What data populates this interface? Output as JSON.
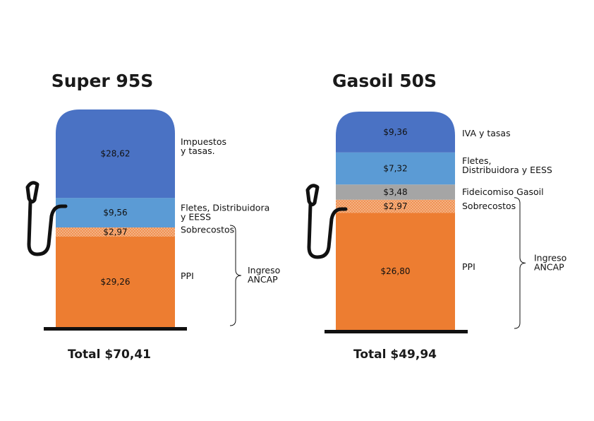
{
  "colors": {
    "iva_tasas": "#4a72c4",
    "fletes": "#5b9bd5",
    "fideicomiso": "#a5a5a5",
    "sobrecostos": "#f4b183",
    "sobrecostos_dots": "#ed7d31",
    "ppi": "#ed7d31",
    "pump_line": "#111111"
  },
  "chart_data": [
    {
      "type": "bar",
      "stacked": true,
      "title": "Super 95S",
      "total_label": "Total $70,41",
      "group_label": [
        "Ingreso",
        "ANCAP"
      ],
      "segments": [
        {
          "key": "ppi",
          "value": 29.26,
          "value_label": "$29,26",
          "label": [
            "PPI"
          ]
        },
        {
          "key": "sobrecostos",
          "value": 2.97,
          "value_label": "$2,97",
          "label": [
            "Sobrecostos"
          ]
        },
        {
          "key": "fletes",
          "value": 9.56,
          "value_label": "$9,56",
          "label": [
            "Fletes, Distribuidora",
            "y EESS"
          ]
        },
        {
          "key": "iva_tasas",
          "value": 28.62,
          "value_label": "$28,62",
          "label": [
            "Impuestos",
            "y tasas."
          ]
        }
      ]
    },
    {
      "type": "bar",
      "stacked": true,
      "title": "Gasoil 50S",
      "total_label": "Total $49,94",
      "group_label": [
        "Ingreso",
        "ANCAP"
      ],
      "segments": [
        {
          "key": "ppi",
          "value": 26.8,
          "value_label": "$26,80",
          "label": [
            "PPI"
          ]
        },
        {
          "key": "sobrecostos",
          "value": 2.97,
          "value_label": "$2,97",
          "label": [
            "Sobrecostos"
          ]
        },
        {
          "key": "fideicomiso",
          "value": 3.48,
          "value_label": "$3,48",
          "label": [
            "Fideicomiso Gasoil"
          ]
        },
        {
          "key": "fletes",
          "value": 7.32,
          "value_label": "$7,32",
          "label": [
            "Fletes,",
            "Distribuidora y EESS"
          ]
        },
        {
          "key": "iva_tasas",
          "value": 9.36,
          "value_label": "$9,36",
          "label": [
            "IVA y tasas"
          ]
        }
      ]
    }
  ]
}
